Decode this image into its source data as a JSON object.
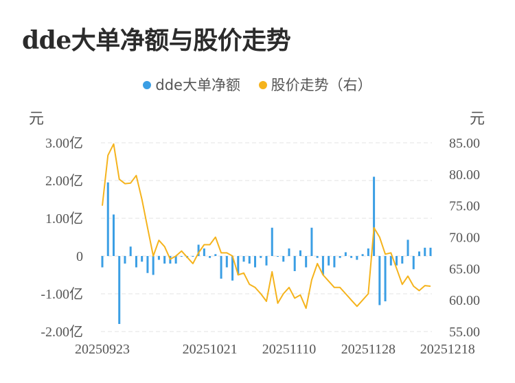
{
  "chart_data": {
    "type": "bar+line",
    "title": "dde大单净额与股价走势",
    "legend": [
      "dde大单净额",
      "股价走势（右）"
    ],
    "colors": {
      "bar": "#3a9ee4",
      "line": "#f5b31c"
    },
    "left_unit": "元",
    "right_unit": "元",
    "y_left_ticks": [
      "3.00亿",
      "2.00亿",
      "1.00亿",
      "0",
      "-1.00亿",
      "-2.00亿"
    ],
    "y_left_range": [
      -2.0,
      3.0
    ],
    "y_right_ticks": [
      "85.00",
      "80.00",
      "75.00",
      "70.00",
      "65.00",
      "60.00",
      "55.00"
    ],
    "y_right_range": [
      55.0,
      85.0
    ],
    "x_ticks": [
      "20250923",
      "20251021",
      "20251110",
      "20251128",
      "20251218"
    ],
    "x_tick_indices": [
      0,
      19,
      33,
      47,
      61
    ],
    "grid": true,
    "dde_net_yi": [
      -0.3,
      1.95,
      1.1,
      -1.8,
      -0.2,
      0.25,
      -0.3,
      -0.15,
      -0.45,
      -0.5,
      -0.1,
      -0.2,
      -0.2,
      -0.2,
      0.0,
      -0.05,
      0.0,
      0.3,
      0.2,
      -0.05,
      0.05,
      -0.6,
      -0.3,
      -0.65,
      -0.5,
      -0.15,
      -0.2,
      -0.3,
      -0.05,
      -0.25,
      0.75,
      -0.02,
      -0.15,
      0.2,
      -0.4,
      0.15,
      -0.3,
      0.75,
      -0.05,
      -0.5,
      -0.25,
      -0.3,
      -0.05,
      0.1,
      -0.05,
      -0.1,
      0.05,
      0.2,
      2.1,
      -1.3,
      -1.2,
      -0.25,
      -0.25,
      -0.2,
      0.43,
      -0.35,
      0.12,
      0.22,
      0.22
    ],
    "price": [
      75.0,
      83.0,
      84.8,
      79.2,
      78.5,
      78.6,
      79.8,
      76.0,
      71.5,
      67.0,
      69.5,
      68.5,
      66.5,
      67.0,
      67.8,
      66.8,
      65.8,
      67.5,
      68.8,
      68.8,
      70.0,
      67.5,
      67.5,
      67.0,
      64.0,
      64.3,
      62.5,
      62.0,
      61.0,
      59.8,
      64.5,
      59.5,
      61.0,
      62.0,
      60.3,
      60.8,
      58.7,
      63.2,
      65.8,
      64.0,
      63.0,
      62.0,
      62.0,
      61.0,
      60.0,
      59.0,
      60.0,
      61.0,
      71.5,
      70.0,
      67.3,
      67.5,
      65.0,
      62.5,
      63.8,
      62.2,
      61.5,
      62.3,
      62.2
    ]
  }
}
